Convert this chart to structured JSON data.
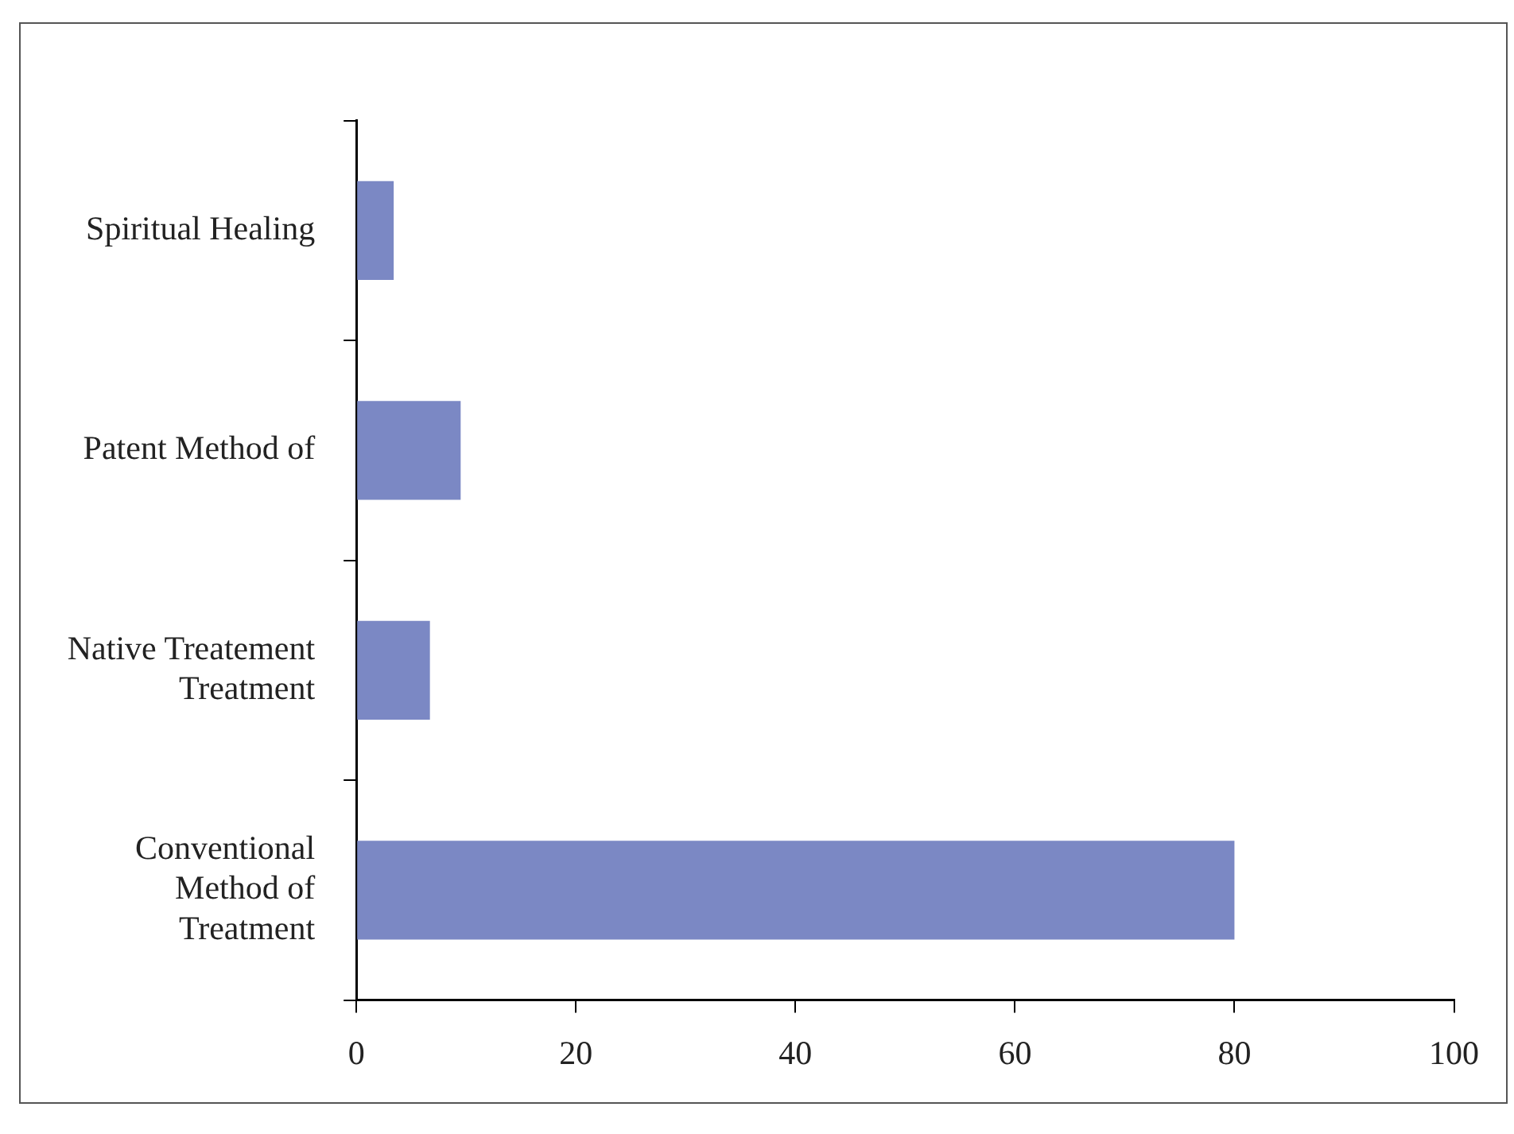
{
  "chart_data": {
    "type": "bar",
    "orientation": "horizontal",
    "categories": [
      "Spiritual Healing",
      "Patent Method of",
      "Native Treatement Treatment",
      "Conventional Method of Treatment"
    ],
    "values": [
      3.4,
      9.5,
      6.7,
      80
    ],
    "color": "#7b88c4",
    "xlim": [
      0,
      100
    ],
    "xticks": [
      0,
      20,
      40,
      60,
      80,
      100
    ],
    "grid": false,
    "legend": false
  }
}
